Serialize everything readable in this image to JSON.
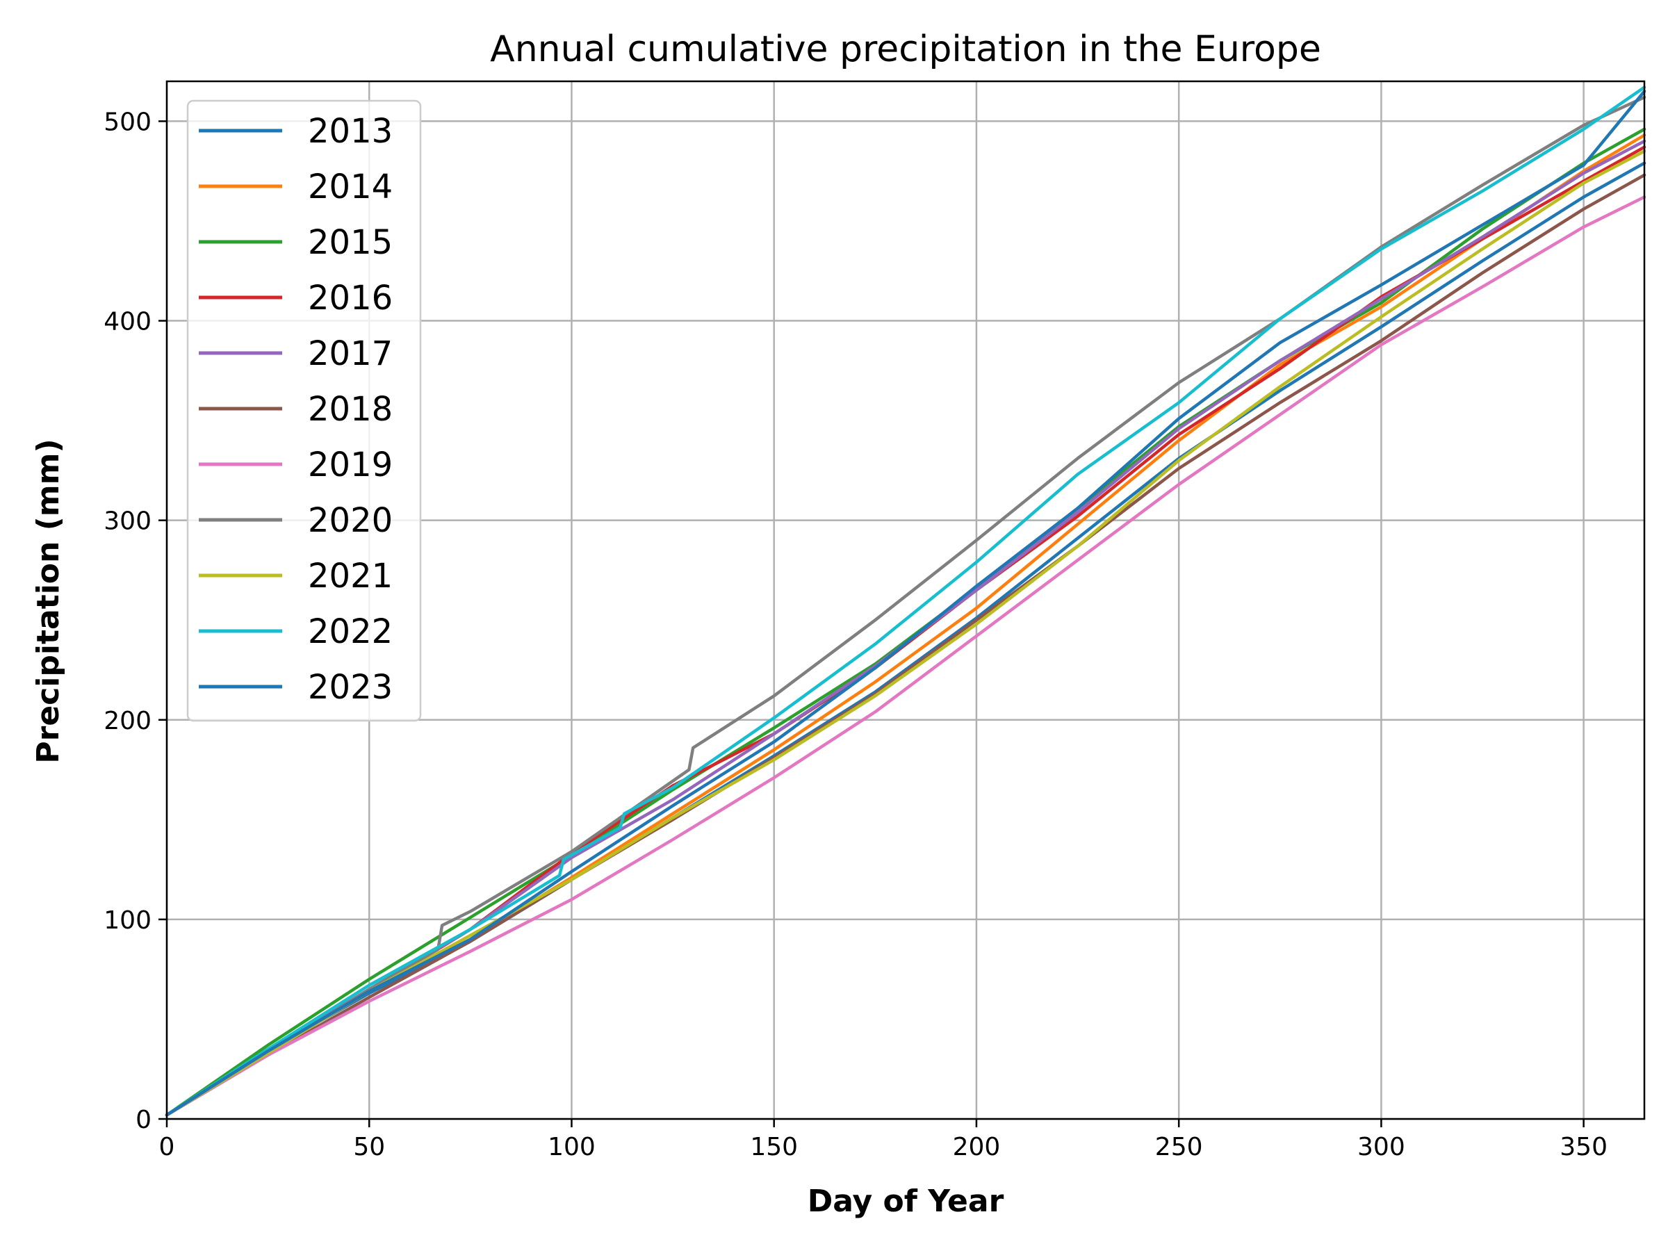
{
  "chart_data": {
    "type": "line",
    "title": "Annual cumulative precipitation in the Europe",
    "xlabel": "Day of Year",
    "ylabel": "Precipitation (mm)",
    "xlim": [
      0,
      365
    ],
    "ylim": [
      0,
      520
    ],
    "xticks": [
      0,
      50,
      100,
      150,
      200,
      250,
      300,
      350
    ],
    "yticks": [
      0,
      100,
      200,
      300,
      400,
      500
    ],
    "grid": true,
    "legend_position": "upper-left",
    "series": [
      {
        "name": "2013",
        "color": "#1f77b4",
        "x": [
          0,
          25,
          50,
          75,
          100,
          125,
          150,
          175,
          200,
          225,
          250,
          275,
          300,
          325,
          350,
          365
        ],
        "y": [
          2,
          34,
          63,
          89,
          120,
          151,
          182,
          214,
          251,
          291,
          331,
          365,
          397,
          430,
          462,
          479
        ]
      },
      {
        "name": "2014",
        "color": "#ff7f0e",
        "x": [
          0,
          25,
          50,
          75,
          100,
          125,
          150,
          175,
          200,
          225,
          250,
          275,
          300,
          325,
          350,
          365
        ],
        "y": [
          2,
          34,
          64,
          90,
          121,
          153,
          185,
          219,
          256,
          298,
          340,
          378,
          407,
          441,
          475,
          493
        ]
      },
      {
        "name": "2015",
        "color": "#2ca02c",
        "x": [
          0,
          25,
          50,
          75,
          100,
          125,
          150,
          175,
          200,
          225,
          250,
          275,
          300,
          325,
          350,
          365
        ],
        "y": [
          2,
          37,
          70,
          101,
          132,
          165,
          196,
          228,
          266,
          306,
          347,
          380,
          409,
          446,
          479,
          496
        ]
      },
      {
        "name": "2016",
        "color": "#d62728",
        "x": [
          0,
          25,
          50,
          75,
          100,
          125,
          150,
          175,
          200,
          225,
          250,
          275,
          300,
          325,
          350,
          365
        ],
        "y": [
          2,
          33,
          64,
          95,
          133,
          167,
          193,
          226,
          265,
          302,
          343,
          376,
          412,
          441,
          470,
          487
        ]
      },
      {
        "name": "2017",
        "color": "#9467bd",
        "x": [
          0,
          25,
          50,
          75,
          100,
          125,
          150,
          175,
          200,
          225,
          250,
          275,
          300,
          325,
          350,
          365
        ],
        "y": [
          2,
          34,
          65,
          95,
          131,
          160,
          193,
          227,
          265,
          304,
          346,
          380,
          411,
          442,
          474,
          490
        ]
      },
      {
        "name": "2018",
        "color": "#8c564b",
        "x": [
          0,
          25,
          50,
          75,
          100,
          125,
          150,
          175,
          200,
          225,
          250,
          275,
          300,
          325,
          350,
          365
        ],
        "y": [
          2,
          32,
          61,
          89,
          120,
          150,
          181,
          213,
          250,
          287,
          326,
          359,
          390,
          424,
          456,
          473
        ]
      },
      {
        "name": "2019",
        "color": "#e377c2",
        "x": [
          0,
          25,
          50,
          75,
          100,
          125,
          150,
          175,
          200,
          225,
          250,
          275,
          300,
          325,
          350,
          365
        ],
        "y": [
          2,
          32,
          59,
          84,
          110,
          140,
          171,
          204,
          242,
          280,
          318,
          353,
          388,
          417,
          447,
          462
        ]
      },
      {
        "name": "2020",
        "color": "#7f7f7f",
        "x": [
          0,
          25,
          50,
          67,
          68,
          75,
          100,
          129,
          130,
          150,
          175,
          200,
          225,
          250,
          275,
          300,
          325,
          350,
          365
        ],
        "y": [
          2,
          33,
          65,
          85,
          97,
          104,
          134,
          175,
          186,
          212,
          250,
          290,
          331,
          369,
          401,
          437,
          468,
          498,
          512
        ]
      },
      {
        "name": "2021",
        "color": "#bcbd22",
        "x": [
          0,
          25,
          50,
          75,
          100,
          125,
          150,
          175,
          200,
          225,
          250,
          275,
          300,
          325,
          350,
          365
        ],
        "y": [
          2,
          33,
          64,
          92,
          120,
          151,
          180,
          212,
          248,
          287,
          330,
          367,
          402,
          436,
          469,
          485
        ]
      },
      {
        "name": "2022",
        "color": "#17becf",
        "x": [
          0,
          25,
          50,
          75,
          97,
          98,
          112,
          113,
          125,
          150,
          175,
          200,
          225,
          250,
          275,
          300,
          325,
          350,
          365
        ],
        "y": [
          2,
          35,
          67,
          95,
          122,
          130,
          146,
          153,
          166,
          201,
          238,
          279,
          323,
          359,
          401,
          436,
          465,
          496,
          517
        ]
      },
      {
        "name": "2023",
        "color": "#1f77b4",
        "x": [
          0,
          25,
          50,
          75,
          100,
          125,
          150,
          175,
          200,
          225,
          250,
          275,
          300,
          325,
          350,
          365
        ],
        "y": [
          2,
          34,
          64,
          90,
          124,
          157,
          189,
          226,
          267,
          306,
          351,
          389,
          418,
          448,
          478,
          515
        ]
      }
    ]
  }
}
